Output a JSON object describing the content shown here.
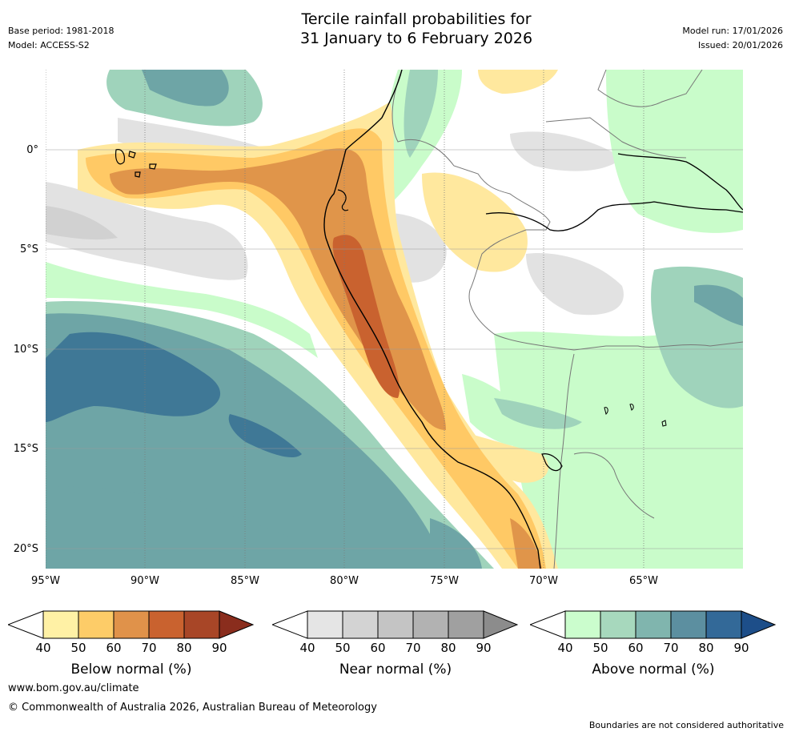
{
  "header": {
    "title_line1": "Tercile rainfall probabilities for",
    "title_line2": "31 January to 6 February 2026",
    "base_period": "Base period: 1981-2018",
    "model": "Model: ACCESS-S2",
    "model_run": "Model run: 17/01/2026",
    "issued": "Issued: 20/01/2026"
  },
  "map": {
    "lat_labels": [
      "0°",
      "5°S",
      "10°S",
      "15°S",
      "20°S"
    ],
    "lon_labels": [
      "95°W",
      "90°W",
      "85°W",
      "80°W",
      "75°W",
      "70°W",
      "65°W"
    ],
    "colors": {
      "ocean_blue_dark": "#3f7896",
      "ocean_teal": "#6ea5a6",
      "ocean_green": "#9fd3bb",
      "green_light": "#c9fcca",
      "grey_light": "#e2e2e2",
      "grey_mid": "#d1d1d1",
      "yellow": "#ffe89e",
      "orange_light": "#ffc965",
      "orange": "#e0954a",
      "orange_dark": "#c9622f",
      "coast": "#000000",
      "border": "#777777"
    }
  },
  "colorbars": [
    {
      "label": "Below normal (%)",
      "ticks": [
        "40",
        "50",
        "60",
        "70",
        "80",
        "90"
      ],
      "colors": [
        "#fff1a5",
        "#fdcc68",
        "#e0924a",
        "#c9622f",
        "#a84627",
        "#8a2d1d"
      ]
    },
    {
      "label": "Near normal (%)",
      "ticks": [
        "40",
        "50",
        "60",
        "70",
        "80",
        "90"
      ],
      "colors": [
        "#e5e5e5",
        "#d3d3d3",
        "#c4c4c4",
        "#b2b2b2",
        "#a0a0a0",
        "#8c8c8c"
      ]
    },
    {
      "label": "Above normal (%)",
      "ticks": [
        "40",
        "50",
        "60",
        "70",
        "80",
        "90"
      ],
      "colors": [
        "#cbfdcd",
        "#a7d8bd",
        "#80b5ae",
        "#5c8fa0",
        "#336998",
        "#1d4e89"
      ]
    }
  ],
  "footer": {
    "website": "www.bom.gov.au/climate",
    "copyright": "© Commonwealth of Australia 2026, Australian Bureau of Meteorology",
    "boundaries_note": "Boundaries are not considered authoritative"
  }
}
